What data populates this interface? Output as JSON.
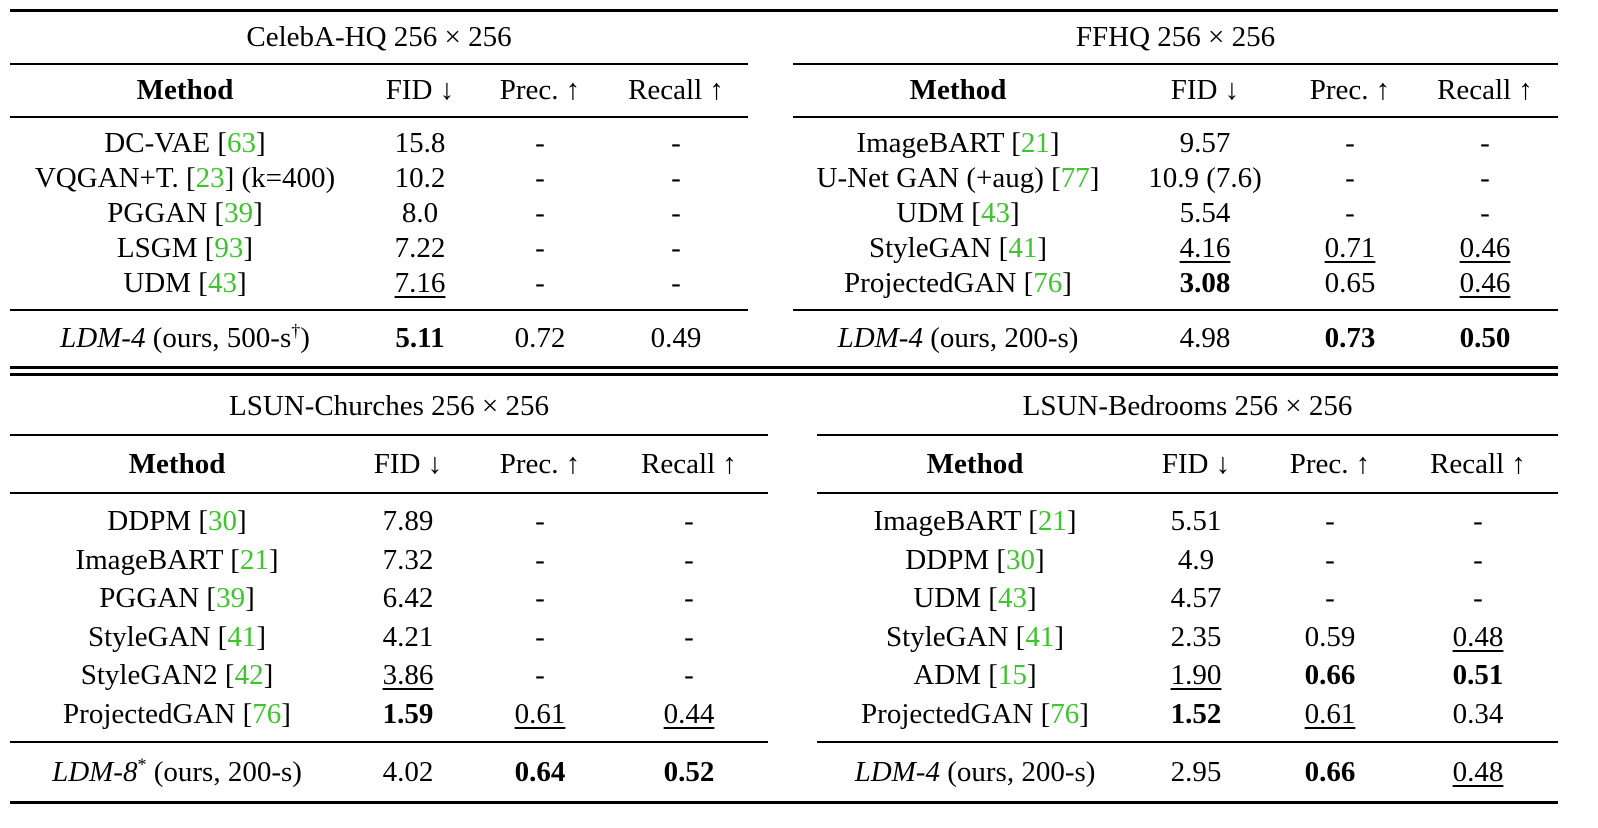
{
  "panels": [
    {
      "title": "CelebA-HQ 256 × 256",
      "headers": [
        "Method",
        "FID ↓",
        "Prec. ↑",
        "Recall ↑"
      ],
      "rows": [
        {
          "name": "DC-VAE",
          "cite": "63",
          "suffix": "",
          "fid": "15.8",
          "prec": "-",
          "recall": "-",
          "style": [
            "",
            "",
            ""
          ]
        },
        {
          "name": "VQGAN+T.",
          "cite": "23",
          "suffix": " (k=400)",
          "fid": "10.2",
          "prec": "-",
          "recall": "-",
          "style": [
            "",
            "",
            ""
          ]
        },
        {
          "name": "PGGAN",
          "cite": "39",
          "suffix": "",
          "fid": "8.0",
          "prec": "-",
          "recall": "-",
          "style": [
            "",
            "",
            ""
          ]
        },
        {
          "name": "LSGM",
          "cite": "93",
          "suffix": "",
          "fid": "7.22",
          "prec": "-",
          "recall": "-",
          "style": [
            "",
            "",
            ""
          ]
        },
        {
          "name": "UDM",
          "cite": "43",
          "suffix": "",
          "fid": "7.16",
          "prec": "-",
          "recall": "-",
          "style": [
            "u",
            "",
            ""
          ]
        }
      ],
      "ours": {
        "name": "LDM-4",
        "rest": " (ours, 500-s",
        "sup": "†",
        "close": ")",
        "fid": "5.11",
        "prec": "0.72",
        "recall": "0.49",
        "style": [
          "b",
          "",
          ""
        ]
      }
    },
    {
      "title": "FFHQ 256 × 256",
      "headers": [
        "Method",
        "FID ↓",
        "Prec. ↑",
        "Recall ↑"
      ],
      "rows": [
        {
          "name": "ImageBART",
          "cite": "21",
          "suffix": "",
          "fid": "9.57",
          "prec": "-",
          "recall": "-",
          "style": [
            "",
            "",
            ""
          ]
        },
        {
          "name": "U-Net GAN (+aug)",
          "cite": "77",
          "suffix": "",
          "fid": "10.9 (7.6)",
          "prec": "-",
          "recall": "-",
          "style": [
            "",
            "",
            ""
          ]
        },
        {
          "name": "UDM",
          "cite": "43",
          "suffix": "",
          "fid": "5.54",
          "prec": "-",
          "recall": "-",
          "style": [
            "",
            "",
            ""
          ]
        },
        {
          "name": "StyleGAN",
          "cite": "41",
          "suffix": "",
          "fid": "4.16",
          "prec": "0.71",
          "recall": "0.46",
          "style": [
            "u",
            "u",
            "u"
          ]
        },
        {
          "name": "ProjectedGAN",
          "cite": "76",
          "suffix": "",
          "fid": "3.08",
          "prec": "0.65",
          "recall": "0.46",
          "style": [
            "b",
            "",
            "u"
          ]
        }
      ],
      "ours": {
        "name": "LDM-4",
        "rest": " (ours, 200-s)",
        "sup": "",
        "close": "",
        "fid": "4.98",
        "prec": "0.73",
        "recall": "0.50",
        "style": [
          "",
          "b",
          "b"
        ]
      }
    },
    {
      "title": "LSUN-Churches 256 × 256",
      "headers": [
        "Method",
        "FID ↓",
        "Prec. ↑",
        "Recall ↑"
      ],
      "rows": [
        {
          "name": "DDPM",
          "cite": "30",
          "suffix": "",
          "fid": "7.89",
          "prec": "-",
          "recall": "-",
          "style": [
            "",
            "",
            ""
          ]
        },
        {
          "name": "ImageBART",
          "cite": "21",
          "suffix": "",
          "fid": "7.32",
          "prec": "-",
          "recall": "-",
          "style": [
            "",
            "",
            ""
          ]
        },
        {
          "name": "PGGAN",
          "cite": "39",
          "suffix": "",
          "fid": "6.42",
          "prec": "-",
          "recall": "-",
          "style": [
            "",
            "",
            ""
          ]
        },
        {
          "name": "StyleGAN",
          "cite": "41",
          "suffix": "",
          "fid": "4.21",
          "prec": "-",
          "recall": "-",
          "style": [
            "",
            "",
            ""
          ]
        },
        {
          "name": "StyleGAN2",
          "cite": "42",
          "suffix": "",
          "fid": "3.86",
          "prec": "-",
          "recall": "-",
          "style": [
            "u",
            "",
            ""
          ]
        },
        {
          "name": "ProjectedGAN",
          "cite": "76",
          "suffix": "",
          "fid": "1.59",
          "prec": "0.61",
          "recall": "0.44",
          "style": [
            "b",
            "u",
            "u"
          ]
        }
      ],
      "ours": {
        "name": "LDM-8",
        "rest": " (ours, 200-s)",
        "sup": "*",
        "close": "",
        "fid": "4.02",
        "prec": "0.64",
        "recall": "0.52",
        "style": [
          "",
          "b",
          "b"
        ]
      }
    },
    {
      "title": "LSUN-Bedrooms 256 × 256",
      "headers": [
        "Method",
        "FID ↓",
        "Prec. ↑",
        "Recall ↑"
      ],
      "rows": [
        {
          "name": "ImageBART",
          "cite": "21",
          "suffix": "",
          "fid": "5.51",
          "prec": "-",
          "recall": "-",
          "style": [
            "",
            "",
            ""
          ]
        },
        {
          "name": "DDPM",
          "cite": "30",
          "suffix": "",
          "fid": "4.9",
          "prec": "-",
          "recall": "-",
          "style": [
            "",
            "",
            ""
          ]
        },
        {
          "name": "UDM",
          "cite": "43",
          "suffix": "",
          "fid": "4.57",
          "prec": "-",
          "recall": "-",
          "style": [
            "",
            "",
            ""
          ]
        },
        {
          "name": "StyleGAN",
          "cite": "41",
          "suffix": "",
          "fid": "2.35",
          "prec": "0.59",
          "recall": "0.48",
          "style": [
            "",
            "",
            "u"
          ]
        },
        {
          "name": "ADM",
          "cite": "15",
          "suffix": "",
          "fid": "1.90",
          "prec": "0.66",
          "recall": "0.51",
          "style": [
            "u",
            "b",
            "b"
          ]
        },
        {
          "name": "ProjectedGAN",
          "cite": "76",
          "suffix": "",
          "fid": "1.52",
          "prec": "0.61",
          "recall": "0.34",
          "style": [
            "b",
            "u",
            ""
          ]
        }
      ],
      "ours": {
        "name": "LDM-4",
        "rest": " (ours, 200-s)",
        "sup": "",
        "close": "",
        "fid": "2.95",
        "prec": "0.66",
        "recall": "0.48",
        "style": [
          "",
          "b",
          "u"
        ]
      }
    }
  ]
}
